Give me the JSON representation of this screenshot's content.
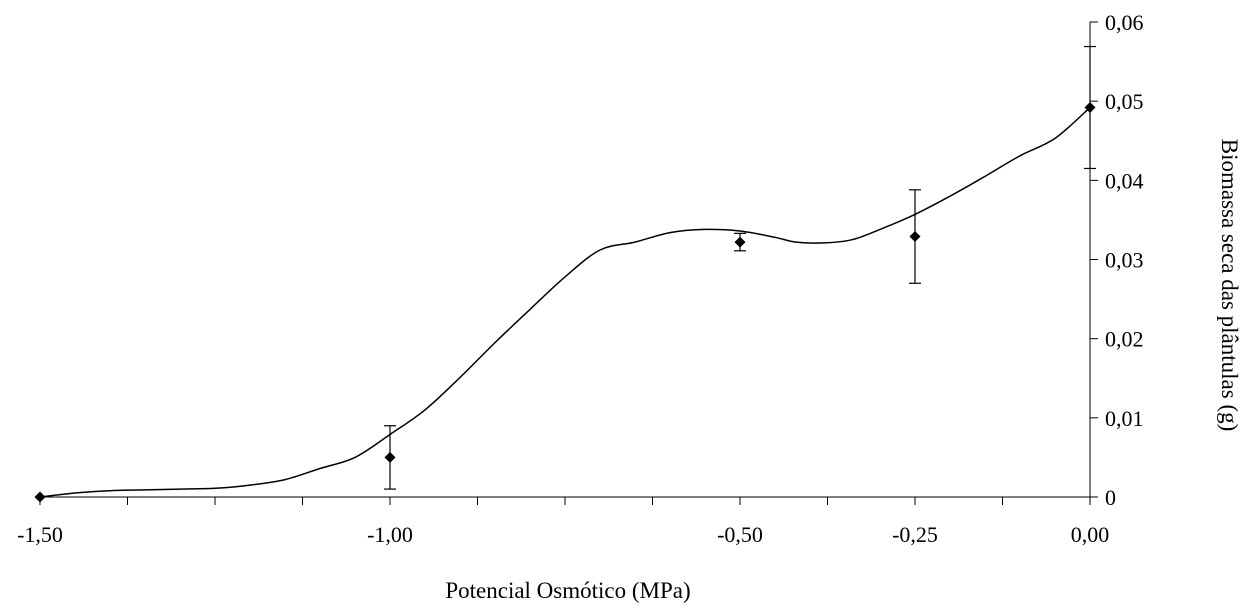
{
  "chart_data": {
    "type": "line",
    "title": "",
    "xlabel": "Potencial Osmótico (MPa)",
    "ylabel": "Biomassa seca das plântulas (g)",
    "xlim": [
      -1.5,
      0.0
    ],
    "ylim": [
      0,
      0.06
    ],
    "x_tick_labels": [
      "-1,50",
      "-1,00",
      "-0,50",
      "-0,25",
      "0,00"
    ],
    "x_tick_values": [
      -1.5,
      -1.0,
      -0.5,
      -0.25,
      0.0
    ],
    "y_tick_labels": [
      "0",
      "0,01",
      "0,02",
      "0,03",
      "0,04",
      "0,05",
      "0,06"
    ],
    "y_tick_values": [
      0,
      0.01,
      0.02,
      0.03,
      0.04,
      0.05,
      0.06
    ],
    "y_axis_side": "right",
    "grid": false,
    "legend": "none",
    "line_color": "#000000",
    "marker": "diamond",
    "series": [
      {
        "x": [
          -1.5,
          -1.0,
          -0.5,
          -0.25,
          0.0
        ],
        "y": [
          0.0,
          0.005,
          0.0322,
          0.0329,
          0.0492
        ],
        "error": [
          0,
          0.004,
          0.0011,
          0.0059,
          0.0077
        ]
      }
    ],
    "curve": {
      "x": [
        -1.5,
        -1.45,
        -1.4,
        -1.35,
        -1.3,
        -1.25,
        -1.2,
        -1.15,
        -1.1,
        -1.05,
        -1.0,
        -0.95,
        -0.9,
        -0.85,
        -0.8,
        -0.75,
        -0.7,
        -0.65,
        -0.6,
        -0.55,
        -0.5,
        -0.45,
        -0.42,
        -0.38,
        -0.34,
        -0.3,
        -0.25,
        -0.2,
        -0.15,
        -0.1,
        -0.05,
        0.0
      ],
      "y": [
        0.0,
        0.0005,
        0.0008,
        0.0009,
        0.001,
        0.0011,
        0.0015,
        0.0022,
        0.0036,
        0.005,
        0.0079,
        0.011,
        0.0151,
        0.0195,
        0.0237,
        0.0278,
        0.0312,
        0.0322,
        0.0334,
        0.0338,
        0.0336,
        0.0328,
        0.0322,
        0.0321,
        0.0325,
        0.0338,
        0.0357,
        0.038,
        0.0405,
        0.0431,
        0.0453,
        0.0492
      ]
    }
  }
}
